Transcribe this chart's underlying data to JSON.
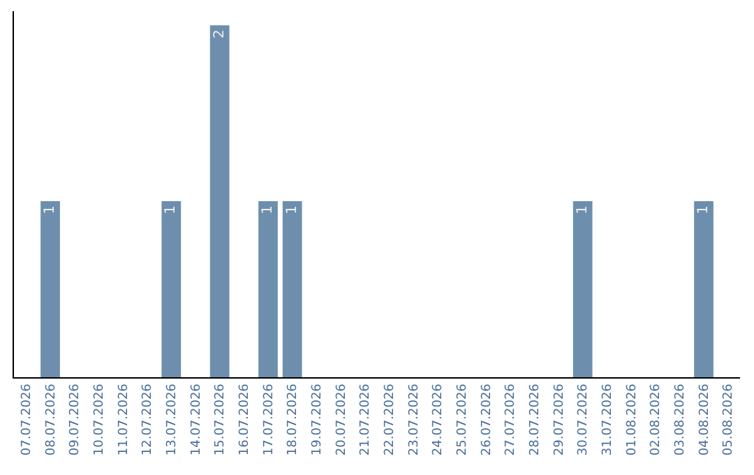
{
  "chart_data": {
    "type": "bar",
    "categories": [
      "07.07.2026",
      "08.07.2026",
      "09.07.2026",
      "10.07.2026",
      "11.07.2026",
      "12.07.2026",
      "13.07.2026",
      "14.07.2026",
      "15.07.2026",
      "16.07.2026",
      "17.07.2026",
      "18.07.2026",
      "19.07.2026",
      "20.07.2026",
      "21.07.2026",
      "22.07.2026",
      "23.07.2026",
      "24.07.2026",
      "25.07.2026",
      "26.07.2026",
      "27.07.2026",
      "28.07.2026",
      "29.07.2026",
      "30.07.2026",
      "31.07.2026",
      "01.08.2026",
      "02.08.2026",
      "03.08.2026",
      "04.08.2026",
      "05.08.2026"
    ],
    "values": [
      0,
      1,
      0,
      0,
      0,
      0,
      1,
      0,
      2,
      0,
      1,
      1,
      0,
      0,
      0,
      0,
      0,
      0,
      0,
      0,
      0,
      0,
      0,
      1,
      0,
      0,
      0,
      0,
      1,
      0
    ],
    "value_labels": [
      null,
      "1",
      null,
      null,
      null,
      null,
      "1",
      null,
      "2",
      null,
      "1",
      "1",
      null,
      null,
      null,
      null,
      null,
      null,
      null,
      null,
      null,
      null,
      null,
      "1",
      null,
      null,
      null,
      null,
      "1",
      null
    ],
    "color": "#6d8fad",
    "ylim": [
      0,
      2.08
    ],
    "tick_labels": "x",
    "legend": false
  }
}
